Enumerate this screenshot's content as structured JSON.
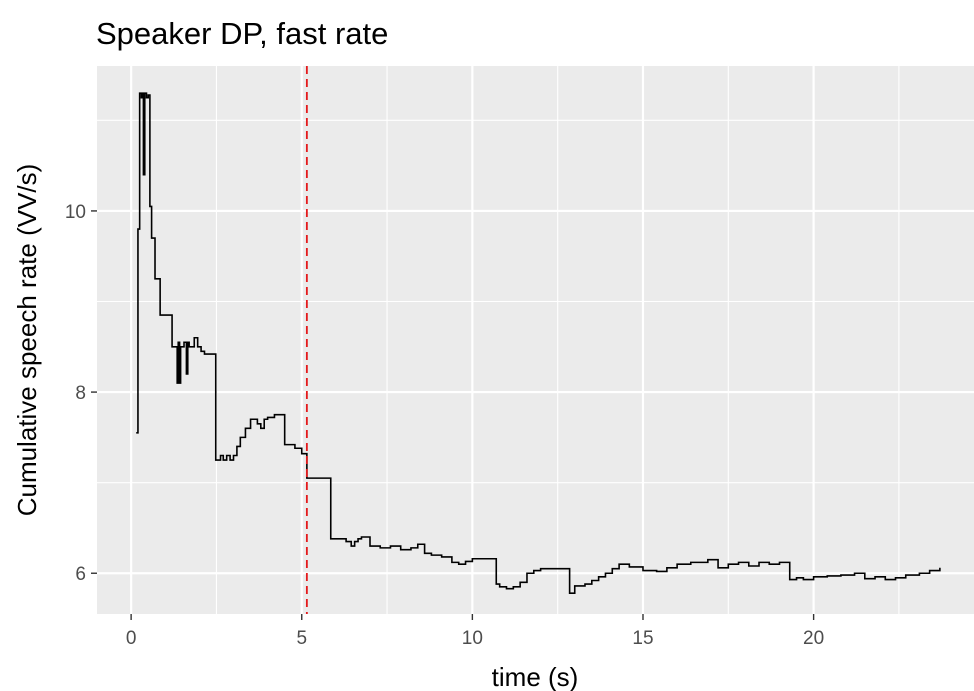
{
  "chart_data": {
    "type": "line",
    "step": true,
    "title": "Speaker DP, fast rate",
    "xlabel": "time (s)",
    "ylabel": "Cumulative speech rate (VV/s)",
    "xlim": [
      -1.0,
      24.7
    ],
    "ylim": [
      5.55,
      11.6
    ],
    "x_ticks": [
      0,
      5,
      10,
      15,
      20
    ],
    "x_tick_labels": [
      "0",
      "5",
      "10",
      "15",
      "20"
    ],
    "y_ticks": [
      6,
      8,
      10
    ],
    "y_tick_labels": [
      "6",
      "8",
      "10"
    ],
    "grid": true,
    "panel_background": "#ebebeb",
    "grid_color": "#ffffff",
    "line_color": "#000000",
    "reference_line": {
      "orientation": "vertical",
      "x": 5.15,
      "style": "dashed",
      "color": "#e41a1c"
    },
    "series": [
      {
        "x": [
          0.15,
          0.2,
          0.25,
          0.3,
          0.33,
          0.36,
          0.4,
          0.45,
          0.5,
          0.55,
          0.6,
          0.7,
          0.85,
          1.2,
          1.35,
          1.38,
          1.42,
          1.45,
          1.55,
          1.62,
          1.66,
          1.7,
          1.85,
          1.95,
          2.05,
          2.15,
          2.48,
          2.62,
          2.7,
          2.8,
          2.9,
          3.0,
          3.1,
          3.2,
          3.35,
          3.5,
          3.7,
          3.8,
          3.9,
          4.0,
          4.2,
          4.5,
          4.8,
          5.0,
          5.15,
          5.85,
          6.3,
          6.45,
          6.55,
          6.65,
          6.75,
          7.0,
          7.3,
          7.6,
          7.9,
          8.2,
          8.4,
          8.6,
          8.8,
          9.1,
          9.4,
          9.6,
          9.8,
          10.0,
          10.4,
          10.7,
          10.8,
          11.0,
          11.2,
          11.4,
          11.6,
          11.8,
          12.0,
          12.3,
          12.6,
          12.85,
          13.0,
          13.3,
          13.5,
          13.7,
          13.9,
          14.1,
          14.3,
          14.6,
          15.0,
          15.4,
          15.7,
          16.0,
          16.4,
          16.9,
          17.2,
          17.5,
          17.8,
          18.1,
          18.4,
          18.7,
          19.0,
          19.3,
          19.5,
          19.7,
          20.0,
          20.4,
          20.8,
          21.2,
          21.5,
          21.8,
          22.1,
          22.4,
          22.7,
          23.1,
          23.4,
          23.7
        ],
        "y": [
          7.55,
          9.8,
          11.3,
          11.25,
          11.3,
          10.4,
          11.3,
          11.25,
          11.28,
          10.05,
          9.7,
          9.25,
          8.85,
          8.5,
          8.1,
          8.55,
          8.1,
          8.5,
          8.55,
          8.2,
          8.55,
          8.5,
          8.6,
          8.5,
          8.45,
          8.42,
          7.25,
          7.3,
          7.25,
          7.3,
          7.25,
          7.3,
          7.4,
          7.5,
          7.6,
          7.7,
          7.65,
          7.6,
          7.7,
          7.72,
          7.75,
          7.42,
          7.38,
          7.32,
          7.05,
          6.38,
          6.35,
          6.3,
          6.35,
          6.38,
          6.4,
          6.3,
          6.28,
          6.3,
          6.26,
          6.28,
          6.32,
          6.22,
          6.2,
          6.18,
          6.12,
          6.1,
          6.13,
          6.16,
          6.16,
          5.88,
          5.85,
          5.83,
          5.85,
          5.9,
          6.0,
          6.03,
          6.05,
          6.05,
          6.05,
          5.78,
          5.86,
          5.88,
          5.92,
          5.96,
          6.0,
          6.05,
          6.1,
          6.07,
          6.03,
          6.02,
          6.06,
          6.1,
          6.12,
          6.15,
          6.06,
          6.1,
          6.12,
          6.08,
          6.12,
          6.1,
          6.12,
          5.93,
          5.95,
          5.93,
          5.96,
          5.97,
          5.98,
          6.0,
          5.94,
          5.96,
          5.93,
          5.95,
          5.98,
          6.0,
          6.03,
          6.06
        ]
      }
    ]
  }
}
